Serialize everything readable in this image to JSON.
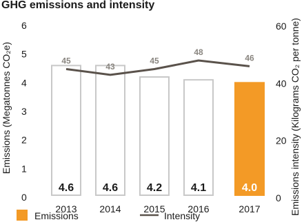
{
  "chart_data": {
    "type": "bar",
    "title": "GHG emissions and intensity",
    "categories": [
      "2013",
      "2014",
      "2015",
      "2016",
      "2017"
    ],
    "series": [
      {
        "name": "Emissions",
        "type": "bar",
        "axis": "left",
        "values": [
          4.6,
          4.6,
          4.2,
          4.1,
          4.0
        ],
        "labels": [
          "4.6",
          "4.6",
          "4.2",
          "4.1",
          "4.0"
        ]
      },
      {
        "name": "Intensity",
        "type": "line",
        "axis": "right",
        "values": [
          45,
          43,
          45,
          48,
          46
        ],
        "labels": [
          "45",
          "43",
          "45",
          "48",
          "46"
        ]
      }
    ],
    "ylabel_left": "Emissions (Megatonnes CO₂e)",
    "ylabel_right": "Emissions intensity (Kilograms CO₂ per tonne)",
    "ylim_left": [
      0,
      6
    ],
    "ylim_right": [
      0,
      60
    ],
    "yticks_left": [
      "0",
      "1",
      "2",
      "3",
      "4",
      "5",
      "6"
    ],
    "yticks_right": [
      "0",
      "20",
      "40",
      "60"
    ],
    "highlight_category": "2017",
    "grid": false,
    "legend_position": "bottom",
    "colors": {
      "bar_outline": "#c8c8c8",
      "bar_highlight": "#f39a26",
      "line": "#5a524b",
      "intensity_label": "#8a8680",
      "text": "#1a1a1a"
    }
  }
}
